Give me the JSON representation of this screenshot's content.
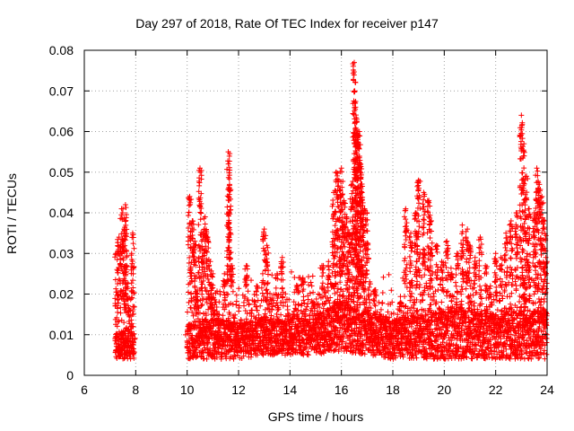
{
  "chart_data": {
    "type": "scatter",
    "title": "Day 297 of 2018, Rate Of TEC Index for receiver p147",
    "xlabel": "GPS time / hours",
    "ylabel": "ROTI / TECUs",
    "xlim": [
      6,
      24
    ],
    "ylim": [
      0,
      0.08
    ],
    "xticks": [
      6,
      8,
      10,
      12,
      14,
      16,
      18,
      20,
      22,
      24
    ],
    "xtick_labels": [
      "6",
      "8",
      "10",
      "12",
      "14",
      "16",
      "18",
      "20",
      "22",
      "24"
    ],
    "yticks": [
      0,
      0.01,
      0.02,
      0.03,
      0.04,
      0.05,
      0.06,
      0.07,
      0.08
    ],
    "ytick_labels": [
      "0",
      "0.01",
      "0.02",
      "0.03",
      "0.04",
      "0.05",
      "0.06",
      "0.07",
      "0.08"
    ],
    "grid": true,
    "marker": "+",
    "series": [
      {
        "name": "ROTI",
        "color": "#ff0000",
        "x": [
          7.25,
          7.35,
          7.45,
          7.55,
          7.65,
          7.75,
          7.85,
          7.92,
          7.55,
          7.6,
          7.88,
          10.0,
          10.1,
          10.2,
          10.3,
          10.4,
          10.5,
          10.6,
          10.7,
          10.8,
          10.9,
          11.0,
          11.1,
          11.2,
          11.3,
          11.45,
          11.6,
          11.65,
          11.75,
          11.9,
          12.1,
          12.3,
          12.5,
          12.7,
          12.9,
          13.0,
          13.1,
          13.3,
          13.5,
          13.7,
          13.9,
          14.1,
          14.3,
          14.5,
          14.7,
          14.9,
          15.1,
          15.3,
          15.5,
          15.7,
          15.8,
          15.9,
          16.0,
          16.1,
          16.2,
          16.3,
          16.4,
          16.5,
          16.55,
          16.6,
          16.65,
          16.7,
          16.75,
          16.8,
          16.9,
          17.0,
          17.1,
          17.3,
          17.5,
          17.7,
          17.9,
          18.1,
          18.3,
          18.5,
          18.7,
          18.9,
          19.0,
          19.2,
          19.4,
          19.5,
          19.7,
          19.9,
          20.1,
          20.3,
          20.5,
          20.7,
          20.9,
          21.0,
          21.2,
          21.4,
          21.6,
          21.8,
          22.0,
          22.2,
          22.4,
          22.6,
          22.8,
          23.0,
          23.1,
          23.2,
          23.3,
          23.5,
          23.6,
          23.7,
          23.8,
          23.9,
          23.95
        ],
        "y": [
          0.03,
          0.034,
          0.041,
          0.036,
          0.027,
          0.019,
          0.012,
          0.008,
          0.006,
          0.042,
          0.035,
          0.007,
          0.044,
          0.038,
          0.033,
          0.021,
          0.051,
          0.035,
          0.039,
          0.034,
          0.028,
          0.025,
          0.018,
          0.015,
          0.013,
          0.025,
          0.055,
          0.047,
          0.027,
          0.01,
          0.012,
          0.027,
          0.016,
          0.022,
          0.014,
          0.036,
          0.032,
          0.019,
          0.025,
          0.029,
          0.017,
          0.015,
          0.022,
          0.024,
          0.013,
          0.018,
          0.02,
          0.027,
          0.028,
          0.045,
          0.05,
          0.048,
          0.051,
          0.043,
          0.039,
          0.035,
          0.047,
          0.077,
          0.066,
          0.063,
          0.059,
          0.06,
          0.052,
          0.045,
          0.041,
          0.04,
          0.023,
          0.021,
          0.015,
          0.012,
          0.01,
          0.013,
          0.018,
          0.041,
          0.035,
          0.04,
          0.048,
          0.045,
          0.043,
          0.038,
          0.032,
          0.028,
          0.033,
          0.025,
          0.03,
          0.037,
          0.036,
          0.032,
          0.029,
          0.034,
          0.027,
          0.02,
          0.03,
          0.029,
          0.035,
          0.038,
          0.04,
          0.064,
          0.057,
          0.049,
          0.041,
          0.04,
          0.051,
          0.047,
          0.044,
          0.038,
          0.029
        ],
        "band": [
          [
            7.2,
            0.004,
            0.01
          ],
          [
            7.6,
            0.004,
            0.012
          ],
          [
            8.0,
            0.004,
            0.01
          ],
          [
            10.0,
            0.004,
            0.013
          ],
          [
            11.0,
            0.004,
            0.014
          ],
          [
            12.0,
            0.004,
            0.013
          ],
          [
            13.0,
            0.005,
            0.014
          ],
          [
            14.0,
            0.005,
            0.014
          ],
          [
            15.0,
            0.005,
            0.015
          ],
          [
            16.0,
            0.006,
            0.018
          ],
          [
            17.0,
            0.005,
            0.016
          ],
          [
            18.0,
            0.004,
            0.014
          ],
          [
            19.0,
            0.004,
            0.015
          ],
          [
            20.0,
            0.004,
            0.016
          ],
          [
            21.0,
            0.004,
            0.016
          ],
          [
            22.0,
            0.004,
            0.015
          ],
          [
            23.0,
            0.004,
            0.016
          ],
          [
            24.0,
            0.004,
            0.016
          ]
        ]
      }
    ]
  }
}
